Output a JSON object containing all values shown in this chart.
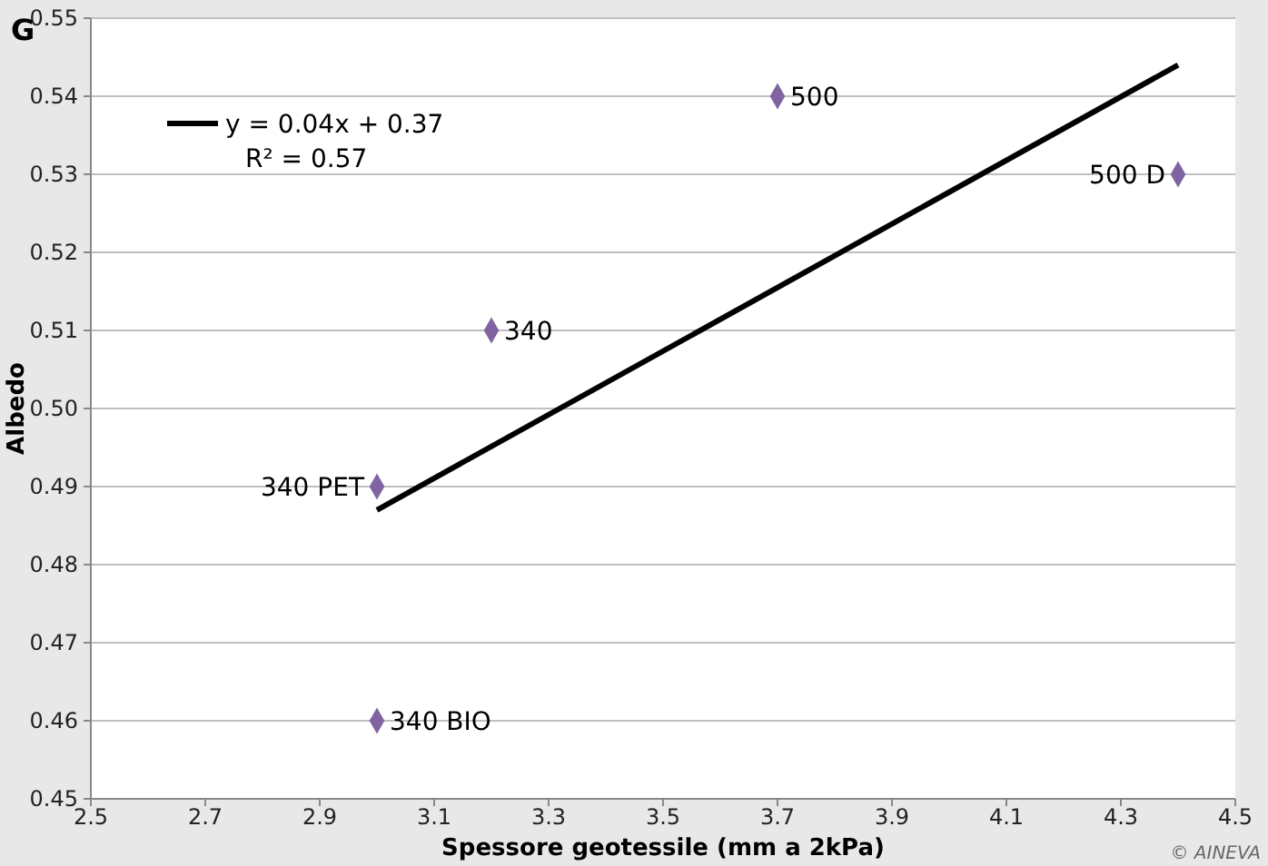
{
  "chart_data": {
    "type": "scatter",
    "title": "G",
    "xlabel": "Spessore geotessile (mm a 2kPa)",
    "ylabel": "Albedo",
    "xlim": [
      2.5,
      4.5
    ],
    "xticks": [
      2.5,
      2.7,
      2.9,
      3.1,
      3.3,
      3.5,
      3.7,
      3.9,
      4.1,
      4.3,
      4.5
    ],
    "ylim": [
      0.45,
      0.55
    ],
    "yticks": [
      {
        "value": 0.45,
        "label": "0.45"
      },
      {
        "value": 0.46,
        "label": "0.46"
      },
      {
        "value": 0.47,
        "label": "0.47"
      },
      {
        "value": 0.48,
        "label": "0.48"
      },
      {
        "value": 0.49,
        "label": "0.49"
      },
      {
        "value": 0.5,
        "label": "0.50"
      },
      {
        "value": 0.51,
        "label": "0.51"
      },
      {
        "value": 0.52,
        "label": "0.52"
      },
      {
        "value": 0.53,
        "label": "0.53"
      },
      {
        "value": 0.54,
        "label": "0.54"
      },
      {
        "value": 0.55,
        "label": "0.55"
      }
    ],
    "grid": "y",
    "legend": "top left",
    "series": [
      {
        "marker": "diamond",
        "color": "#8064a2",
        "x": [
          3.0,
          3.0,
          3.2,
          3.7,
          4.4
        ],
        "values": [
          0.49,
          0.46,
          0.51,
          0.54,
          0.53
        ]
      },
      {
        "type": "line",
        "name": "y = 0.04x + 0.37",
        "color": "#000000",
        "x": [
          3.0,
          4.4
        ],
        "values": [
          0.487,
          0.544
        ]
      }
    ],
    "annotations": [
      "R² = 0.57",
      {
        "text": "340 PET",
        "x": 3.0,
        "y": 0.49
      },
      {
        "text": "340 BIO",
        "x": 3.0,
        "y": 0.46
      },
      {
        "text": "340",
        "x": 3.2,
        "y": 0.51
      },
      {
        "text": "500",
        "x": 3.7,
        "y": 0.54
      },
      {
        "text": "500 D",
        "x": 4.4,
        "y": 0.53
      },
      "© AINEVA"
    ]
  }
}
